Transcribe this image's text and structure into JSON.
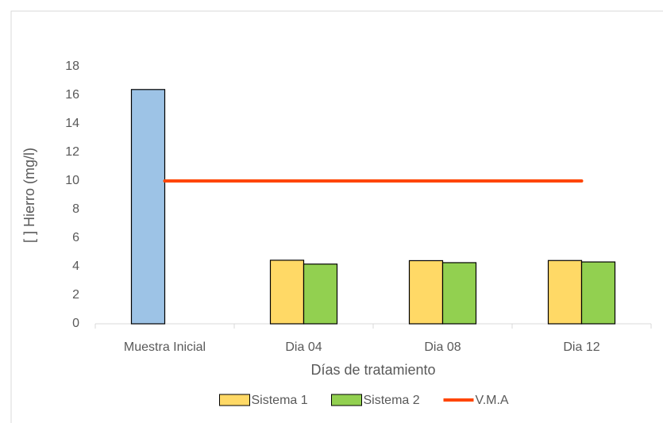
{
  "chart_data": {
    "type": "bar",
    "y_label": "[ ] Hierro (mg/l)",
    "x_label": "Días de tratamiento",
    "categories": [
      "Muestra Inicial",
      "Dia 04",
      "Dia 08",
      "Dia 12"
    ],
    "series": [
      {
        "name": "Sistema 1",
        "color": "#ffd966",
        "point_colors": [
          "#9dc3e6",
          "#ffd966",
          "#ffd966",
          "#ffd966"
        ],
        "values": [
          16.4,
          4.45,
          4.42,
          4.43
        ]
      },
      {
        "name": "Sistema 2",
        "color": "#92d050",
        "values": [
          null,
          4.18,
          4.28,
          4.33
        ]
      },
      {
        "name": "V.M.A",
        "type": "line",
        "color": "#ff4500",
        "values": [
          10,
          10,
          10,
          10
        ]
      }
    ],
    "ylim": [
      0,
      18
    ],
    "yticks": [
      0,
      2,
      4,
      6,
      8,
      10,
      12,
      14,
      16,
      18
    ],
    "grid": false,
    "legend": "bottom"
  }
}
